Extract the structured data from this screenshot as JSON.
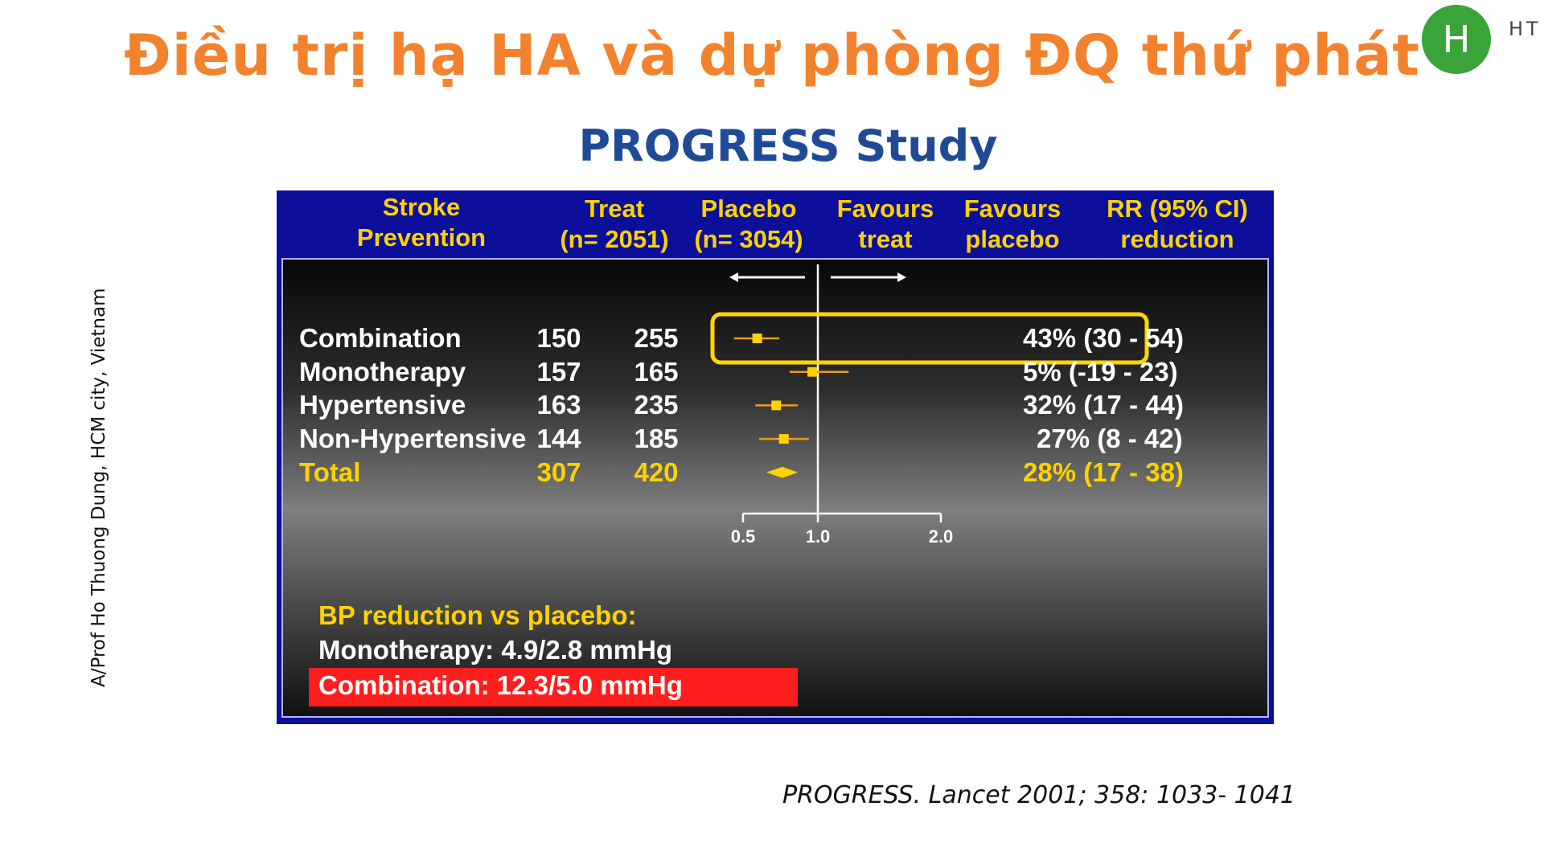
{
  "page_title": "Điều trị hạ HA và dự phòng ĐQ thứ phát",
  "subtitle": "PROGRESS Study",
  "avatar_letter": "H",
  "avatar_text": "HT",
  "side_note": "A/Prof Ho Thuong Dung, HCM city, Vietnam",
  "citation": "PROGRESS.  Lancet 2001; 358: 1033- 1041",
  "table_header": {
    "col1": [
      "Stroke",
      "Prevention"
    ],
    "col2": [
      "Treat",
      "(n= 2051)"
    ],
    "col3": [
      "Placebo",
      "(n= 3054)"
    ],
    "col4": [
      "Favours",
      "treat"
    ],
    "col5": [
      "Favours",
      "placebo"
    ],
    "col6": [
      "RR (95% CI)",
      "reduction"
    ]
  },
  "bp_note": {
    "heading": "BP reduction vs placebo:",
    "monotherapy": "Monotherapy: 4.9/2.8 mmHg",
    "combination": "Combination: 12.3/5.0 mmHg"
  },
  "colors": {
    "title": "#f3822e",
    "subtitle": "#1f4a96",
    "header_bg": "#0b0f9a",
    "header_text": "#ffd200",
    "marker": "#ffd200",
    "ci_line": "#f39a1a",
    "highlight_box": "#ffd700",
    "combo_bg": "#ff1e1e"
  },
  "chart_data": {
    "type": "forest",
    "x_ticks": [
      "0.5",
      "1.0",
      "2.0"
    ],
    "xlim": [
      0.5,
      2.0
    ],
    "reference_line": 1.0,
    "highlighted_row": "Combination",
    "rows": [
      {
        "label": "Combination",
        "treat": "150",
        "placebo": "255",
        "rr_text": "43% (30 - 54)",
        "rr": 0.57,
        "lo": 0.46,
        "hi": 0.7,
        "total": false
      },
      {
        "label": "Monotherapy",
        "treat": "157",
        "placebo": "165",
        "rr_text": "5% (-19 - 23)",
        "rr": 0.95,
        "lo": 0.77,
        "hi": 1.19,
        "total": false
      },
      {
        "label": "Hypertensive",
        "treat": "163",
        "placebo": "235",
        "rr_text": "32% (17 - 44)",
        "rr": 0.68,
        "lo": 0.56,
        "hi": 0.83,
        "total": false
      },
      {
        "label": "Non-Hypertensive",
        "treat": "144",
        "placebo": "185",
        "rr_text": "27% (8 - 42)",
        "rr": 0.73,
        "lo": 0.58,
        "hi": 0.92,
        "total": false
      },
      {
        "label": "Total",
        "treat": "307",
        "placebo": "420",
        "rr_text": "28% (17 - 38)",
        "rr": 0.72,
        "lo": 0.62,
        "hi": 0.83,
        "total": true
      }
    ]
  }
}
